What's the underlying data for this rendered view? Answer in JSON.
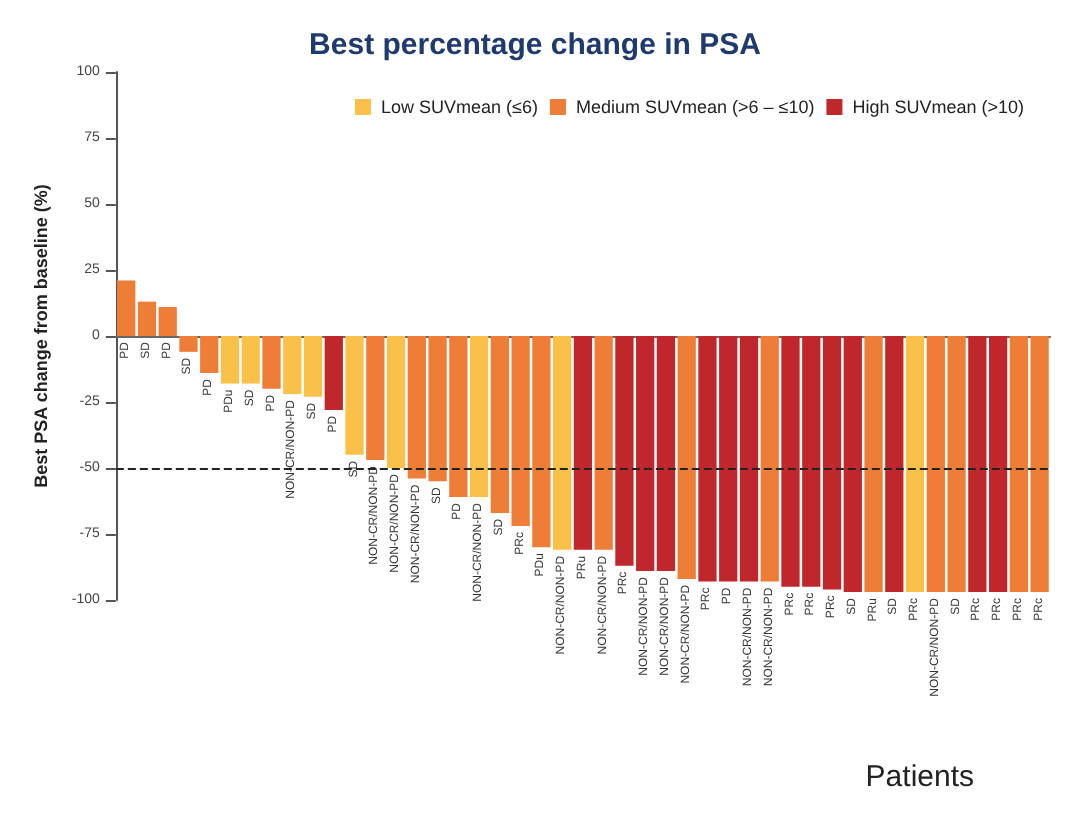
{
  "chart_data": {
    "type": "bar",
    "title": "Best percentage change in PSA",
    "xlabel": "Patients",
    "ylabel": "Best PSA change from baseline (%)",
    "categories": [
      "PD",
      "SD",
      "PD",
      "SD",
      "PD",
      "PDu",
      "SD",
      "PD",
      "NON-CR/NON-PD",
      "SD",
      "PD",
      "SD",
      "NON-CR/NON-PD",
      "NON-CR/NON-PD",
      "NON-CR/NON-PD",
      "SD",
      "PD",
      "NON-CR/NON-PD",
      "SD",
      "PRc",
      "PDu",
      "NON-CR/NON-PD",
      "PRu",
      "NON-CR/NON-PD",
      "PRc",
      "NON-CR/NON-PD",
      "NON-CR/NON-PD",
      "NON-CR/NON-PD",
      "PRc",
      "PD",
      "NON-CR/NON-PD",
      "NON-CR/NON-PD",
      "PRc",
      "PRc",
      "PRc",
      "SD",
      "PRu",
      "SD",
      "PRc",
      "NON-CR/NON-PD",
      "SD",
      "PRc",
      "PRc",
      "PRc",
      "PRc"
    ],
    "series": [
      {
        "name": "Low SUVmean (≤6)",
        "color": "#f9c04a",
        "values": [
          null,
          null,
          null,
          null,
          null,
          -18,
          -18,
          null,
          -22,
          -23,
          null,
          -45,
          null,
          -50,
          null,
          null,
          null,
          -61,
          null,
          null,
          null,
          -81,
          null,
          null,
          null,
          null,
          null,
          null,
          null,
          null,
          null,
          null,
          null,
          null,
          null,
          null,
          null,
          null,
          -97,
          null,
          null,
          null,
          null,
          null,
          null
        ]
      },
      {
        "name": "Medium SUVmean (>6 – ≤10)",
        "color": "#ee7d37",
        "values": [
          21,
          13,
          11,
          -6,
          -14,
          null,
          null,
          -20,
          null,
          null,
          null,
          null,
          -47,
          null,
          -54,
          -55,
          -61,
          null,
          -67,
          -72,
          -80,
          null,
          null,
          -81,
          null,
          null,
          null,
          -92,
          null,
          null,
          null,
          -93,
          null,
          null,
          null,
          null,
          -97,
          null,
          null,
          -97,
          -97,
          null,
          null,
          -97,
          -97
        ]
      },
      {
        "name": "High SUVmean (>10)",
        "color": "#c0272d",
        "values": [
          null,
          null,
          null,
          null,
          null,
          null,
          null,
          null,
          null,
          null,
          -28,
          null,
          null,
          null,
          null,
          null,
          null,
          null,
          null,
          null,
          null,
          null,
          -81,
          null,
          -87,
          -89,
          -89,
          null,
          -93,
          -93,
          -93,
          null,
          -95,
          -95,
          -96,
          -97,
          null,
          -97,
          null,
          null,
          null,
          -97,
          -97,
          null,
          null
        ]
      }
    ],
    "ylim": [
      -100,
      100
    ],
    "yticks": [
      -100,
      -75,
      -50,
      -25,
      0,
      25,
      50,
      75,
      100
    ],
    "ref_lines": [
      {
        "axis": "y",
        "value": -50,
        "color": "#222222",
        "line_style": "dashed"
      }
    ],
    "legend": "top right",
    "grid": false
  }
}
